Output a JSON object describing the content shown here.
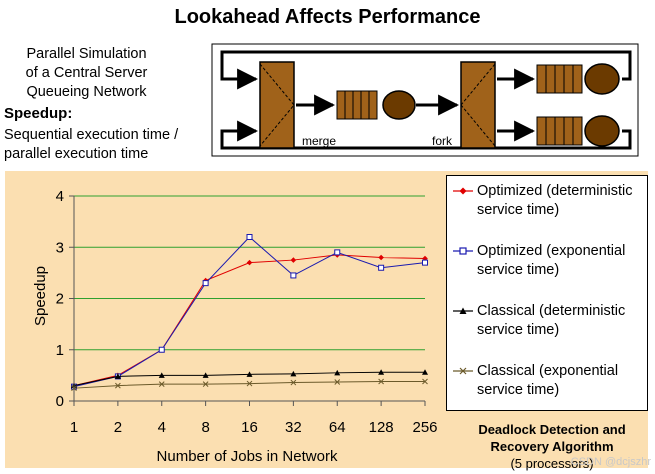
{
  "title": "Lookahead Affects Performance",
  "description_lines": [
    "Parallel Simulation",
    "of a Central Server",
    "Queueing Network"
  ],
  "speedup_heading": "Speedup:",
  "speedup_lines": [
    "Sequential execution time /",
    "parallel execution time"
  ],
  "diagram": {
    "merge_label": "merge",
    "fork_label": "fork",
    "colors": {
      "block": "#a0621a",
      "circle": "#6b3a00",
      "line": "#000000"
    }
  },
  "algorithm_caption": {
    "line1": "Deadlock Detection and",
    "line2": "Recovery Algorithm",
    "line3": "(5 processors)"
  },
  "watermark": "CSDN @dcjszhr",
  "chart_data": {
    "type": "line",
    "title": "",
    "xlabel": "Number of Jobs in Network",
    "ylabel": "Speedup",
    "categories": [
      "1",
      "2",
      "4",
      "8",
      "16",
      "32",
      "64",
      "128",
      "256"
    ],
    "ylim": [
      0,
      4
    ],
    "yticks": [
      "0",
      "1",
      "2",
      "3",
      "4"
    ],
    "grid": true,
    "legend_position": "right",
    "background": "#fbdfb1",
    "series": [
      {
        "name": "Optimized (deterministic service time)",
        "color": "#e00000",
        "marker": "diamond",
        "values": [
          0.3,
          0.5,
          1.0,
          2.35,
          2.7,
          2.75,
          2.85,
          2.8,
          2.78
        ]
      },
      {
        "name": "Optimized (exponential service time)",
        "color": "#1a1ab0",
        "marker": "square",
        "values": [
          0.28,
          0.48,
          1.0,
          2.3,
          3.2,
          2.45,
          2.9,
          2.6,
          2.7
        ]
      },
      {
        "name": "Classical (deterministic service time)",
        "color": "#000000",
        "marker": "triangle",
        "values": [
          0.3,
          0.48,
          0.5,
          0.5,
          0.52,
          0.53,
          0.55,
          0.56,
          0.56
        ]
      },
      {
        "name": "Classical (exponential service time)",
        "color": "#6b5a2a",
        "marker": "x",
        "values": [
          0.25,
          0.3,
          0.33,
          0.33,
          0.34,
          0.36,
          0.37,
          0.38,
          0.38
        ]
      }
    ]
  }
}
